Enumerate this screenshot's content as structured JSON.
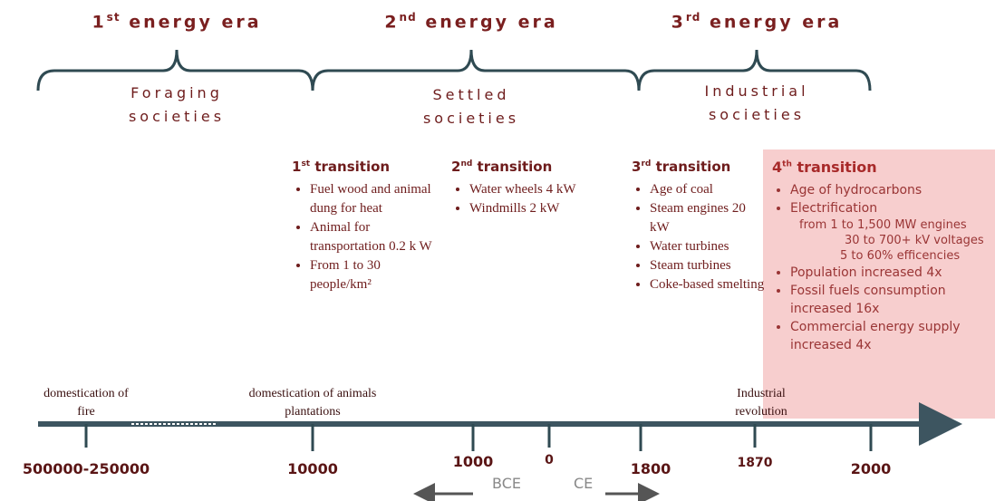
{
  "eras": [
    {
      "number": "1",
      "suffix": "st",
      "title": "energy era",
      "society": [
        "Foraging",
        "societies"
      ]
    },
    {
      "number": "2",
      "suffix": "nd",
      "title": "energy era",
      "society": [
        "Settled",
        "societies"
      ]
    },
    {
      "number": "3",
      "suffix": "rd",
      "title": "energy era",
      "society": [
        "Industrial",
        "societies"
      ]
    }
  ],
  "transitions": [
    {
      "number": "1",
      "suffix": "st",
      "title": "transition",
      "items": [
        {
          "text": "Fuel wood and animal dung for heat"
        },
        {
          "text": "Animal for transportation 0.2 k W"
        },
        {
          "text": "From 1 to 30 people/km²"
        }
      ]
    },
    {
      "number": "2",
      "suffix": "nd",
      "title": "transition",
      "items": [
        {
          "text": "Water wheels 4 kW"
        },
        {
          "text": "Windmills 2 kW"
        }
      ]
    },
    {
      "number": "3",
      "suffix": "rd",
      "title": "transition",
      "items": [
        {
          "text": "Age of coal"
        },
        {
          "text": "Steam engines 20 kW"
        },
        {
          "text": "Water turbines"
        },
        {
          "text": "Steam turbines"
        },
        {
          "text": "Coke-based smelting"
        }
      ]
    },
    {
      "number": "4",
      "suffix": "th",
      "title": "transition",
      "items": [
        {
          "text": "Age of hydrocarbons"
        },
        {
          "text": "Electrification",
          "details": [
            "from 1 to 1,500 MW engines",
            "30 to 700+ kV voltages",
            "5 to 60% efficencies"
          ]
        },
        {
          "text": "Population increased 4x"
        },
        {
          "text": "Fossil fuels consumption increased 16x"
        },
        {
          "text": "Commercial energy supply increased 4x"
        }
      ]
    }
  ],
  "timeline": {
    "events": [
      [
        "domestication of",
        "fire"
      ],
      [
        "domestication of animals",
        "plantations"
      ],
      [
        "Industrial",
        "revolution"
      ]
    ],
    "ticks": [
      "500000-250000",
      "10000",
      "1000",
      "0",
      "1800",
      "1870",
      "2000"
    ],
    "directions": [
      "BCE",
      "CE"
    ]
  }
}
